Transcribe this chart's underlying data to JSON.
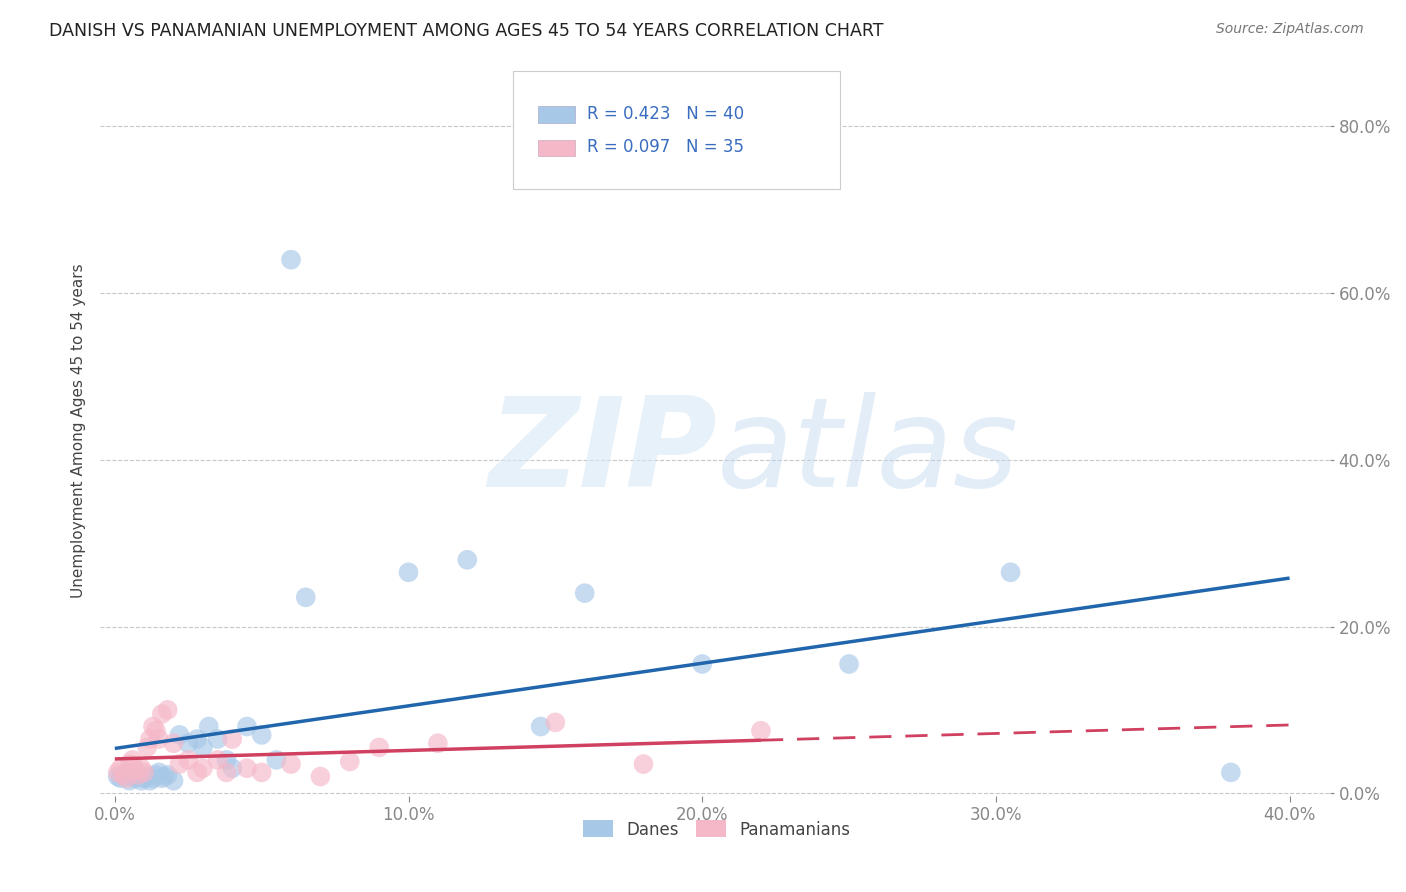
{
  "title": "DANISH VS PANAMANIAN UNEMPLOYMENT AMONG AGES 45 TO 54 YEARS CORRELATION CHART",
  "source": "Source: ZipAtlas.com",
  "ylabel": "Unemployment Among Ages 45 to 54 years",
  "xlabel_ticks": [
    "0.0%",
    "10.0%",
    "20.0%",
    "30.0%",
    "40.0%"
  ],
  "ylabel_ticks": [
    "0.0%",
    "20.0%",
    "40.0%",
    "60.0%",
    "80.0%"
  ],
  "xlim": [
    -0.005,
    0.415
  ],
  "ylim": [
    -0.01,
    0.88
  ],
  "danes_R": 0.423,
  "danes_N": 40,
  "panamanians_R": 0.097,
  "panamanians_N": 35,
  "danes_color": "#a8c8e8",
  "panamanians_color": "#f5b8c8",
  "danes_line_color": "#2166ac",
  "panamanians_line_color": "#d04060",
  "danes_x": [
    0.001,
    0.002,
    0.003,
    0.004,
    0.005,
    0.006,
    0.007,
    0.008,
    0.009,
    0.01,
    0.011,
    0.012,
    0.013,
    0.014,
    0.015,
    0.016,
    0.017,
    0.018,
    0.02,
    0.022,
    0.025,
    0.028,
    0.03,
    0.032,
    0.035,
    0.038,
    0.04,
    0.045,
    0.05,
    0.055,
    0.06,
    0.065,
    0.1,
    0.12,
    0.145,
    0.16,
    0.2,
    0.25,
    0.305,
    0.38
  ],
  "danes_y": [
    0.02,
    0.018,
    0.022,
    0.025,
    0.015,
    0.02,
    0.018,
    0.022,
    0.015,
    0.018,
    0.02,
    0.015,
    0.018,
    0.022,
    0.025,
    0.018,
    0.02,
    0.022,
    0.015,
    0.07,
    0.06,
    0.065,
    0.055,
    0.08,
    0.065,
    0.04,
    0.03,
    0.08,
    0.07,
    0.04,
    0.64,
    0.235,
    0.265,
    0.28,
    0.08,
    0.24,
    0.155,
    0.155,
    0.265,
    0.025
  ],
  "panamanians_x": [
    0.001,
    0.002,
    0.003,
    0.004,
    0.005,
    0.006,
    0.007,
    0.008,
    0.009,
    0.01,
    0.011,
    0.012,
    0.013,
    0.014,
    0.015,
    0.016,
    0.018,
    0.02,
    0.022,
    0.025,
    0.028,
    0.03,
    0.035,
    0.038,
    0.04,
    0.045,
    0.05,
    0.06,
    0.07,
    0.08,
    0.09,
    0.11,
    0.15,
    0.18,
    0.22
  ],
  "panamanians_y": [
    0.025,
    0.03,
    0.022,
    0.018,
    0.035,
    0.04,
    0.028,
    0.022,
    0.03,
    0.025,
    0.055,
    0.065,
    0.08,
    0.075,
    0.065,
    0.095,
    0.1,
    0.06,
    0.035,
    0.04,
    0.025,
    0.03,
    0.04,
    0.025,
    0.065,
    0.03,
    0.025,
    0.035,
    0.02,
    0.038,
    0.055,
    0.06,
    0.085,
    0.035,
    0.075
  ],
  "background_color": "#ffffff",
  "grid_color": "#c8c8c8"
}
